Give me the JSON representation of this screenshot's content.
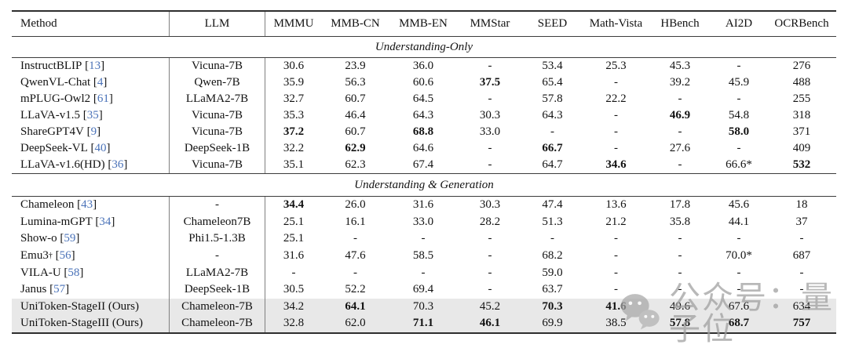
{
  "table": {
    "columns": [
      "Method",
      "LLM",
      "MMMU",
      "MMB-CN",
      "MMB-EN",
      "MMStar",
      "SEED",
      "Math-Vista",
      "HBench",
      "AI2D",
      "OCRBench"
    ],
    "sections": [
      {
        "title": "Understanding-Only",
        "rows": [
          {
            "method": "InstructBLIP",
            "cite": "13",
            "llm": "Vicuna-7B",
            "values": [
              "30.6",
              "23.9",
              "36.0",
              "-",
              "53.4",
              "25.3",
              "45.3",
              "-",
              "276"
            ],
            "bold": [],
            "highlight": false
          },
          {
            "method": "QwenVL-Chat",
            "cite": "4",
            "llm": "Qwen-7B",
            "values": [
              "35.9",
              "56.3",
              "60.6",
              "37.5",
              "65.4",
              "-",
              "39.2",
              "45.9",
              "488"
            ],
            "bold": [
              3
            ],
            "highlight": false
          },
          {
            "method": "mPLUG-Owl2",
            "cite": "61",
            "llm": "LLaMA2-7B",
            "values": [
              "32.7",
              "60.7",
              "64.5",
              "-",
              "57.8",
              "22.2",
              "-",
              "-",
              "255"
            ],
            "bold": [],
            "highlight": false
          },
          {
            "method": "LLaVA-v1.5",
            "cite": "35",
            "llm": "Vicuna-7B",
            "values": [
              "35.3",
              "46.4",
              "64.3",
              "30.3",
              "64.3",
              "-",
              "46.9",
              "54.8",
              "318"
            ],
            "bold": [
              6
            ],
            "highlight": false
          },
          {
            "method": "ShareGPT4V",
            "cite": "9",
            "llm": "Vicuna-7B",
            "values": [
              "37.2",
              "60.7",
              "68.8",
              "33.0",
              "-",
              "-",
              "-",
              "58.0",
              "371"
            ],
            "bold": [
              0,
              2,
              7
            ],
            "highlight": false
          },
          {
            "method": "DeepSeek-VL",
            "cite": "40",
            "llm": "DeepSeek-1B",
            "values": [
              "32.2",
              "62.9",
              "64.6",
              "-",
              "66.7",
              "-",
              "27.6",
              "-",
              "409"
            ],
            "bold": [
              1,
              4
            ],
            "highlight": false
          },
          {
            "method": "LLaVA-v1.6(HD)",
            "cite": "36",
            "llm": "Vicuna-7B",
            "values": [
              "35.1",
              "62.3",
              "67.4",
              "-",
              "64.7",
              "34.6",
              "-",
              "66.6*",
              "532"
            ],
            "bold": [
              5,
              8
            ],
            "highlight": false
          }
        ]
      },
      {
        "title": "Understanding & Generation",
        "rows": [
          {
            "method": "Chameleon",
            "cite": "43",
            "llm": "-",
            "values": [
              "34.4",
              "26.0",
              "31.6",
              "30.3",
              "47.4",
              "13.6",
              "17.8",
              "45.6",
              "18"
            ],
            "bold": [
              0
            ],
            "highlight": false
          },
          {
            "method": "Lumina-mGPT",
            "cite": "34",
            "llm": "Chameleon7B",
            "values": [
              "25.1",
              "16.1",
              "33.0",
              "28.2",
              "51.3",
              "21.2",
              "35.8",
              "44.1",
              "37"
            ],
            "bold": [],
            "highlight": false
          },
          {
            "method": "Show-o",
            "cite": "59",
            "llm": "Phi1.5-1.3B",
            "values": [
              "25.1",
              "-",
              "-",
              "-",
              "-",
              "-",
              "-",
              "-",
              "-"
            ],
            "bold": [],
            "highlight": false
          },
          {
            "method": "Emu3",
            "sup": "†",
            "cite": "56",
            "llm": "-",
            "values": [
              "31.6",
              "47.6",
              "58.5",
              "-",
              "68.2",
              "-",
              "-",
              "70.0*",
              "687"
            ],
            "bold": [],
            "highlight": false
          },
          {
            "method": "VILA-U",
            "cite": "58",
            "llm": "LLaMA2-7B",
            "values": [
              "-",
              "-",
              "-",
              "-",
              "59.0",
              "-",
              "-",
              "-",
              "-"
            ],
            "bold": [],
            "highlight": false
          },
          {
            "method": "Janus",
            "cite": "57",
            "llm": "DeepSeek-1B",
            "values": [
              "30.5",
              "52.2",
              "69.4",
              "-",
              "63.7",
              "-",
              "-",
              "-",
              "-"
            ],
            "bold": [],
            "highlight": false
          },
          {
            "method": "UniToken-StageII (Ours)",
            "cite": "",
            "llm": "Chameleon-7B",
            "values": [
              "34.2",
              "64.1",
              "70.3",
              "45.2",
              "70.3",
              "41.6",
              "49.6",
              "67.6",
              "634"
            ],
            "bold": [
              1,
              4,
              5
            ],
            "highlight": true
          },
          {
            "method": "UniToken-StageIII (Ours)",
            "cite": "",
            "llm": "Chameleon-7B",
            "values": [
              "32.8",
              "62.0",
              "71.1",
              "46.1",
              "69.9",
              "38.5",
              "57.8",
              "68.7",
              "757"
            ],
            "bold": [
              2,
              3,
              6,
              7,
              8
            ],
            "highlight": true
          }
        ]
      }
    ]
  },
  "watermark": {
    "text": "公众号：量子位",
    "icon": "wechat-icon"
  },
  "colors": {
    "citation_blue": "#4a72b8",
    "row_highlight": "#e8e8e8",
    "rule": "#2e2e2e",
    "watermark_gray": "#9e9e9e"
  }
}
